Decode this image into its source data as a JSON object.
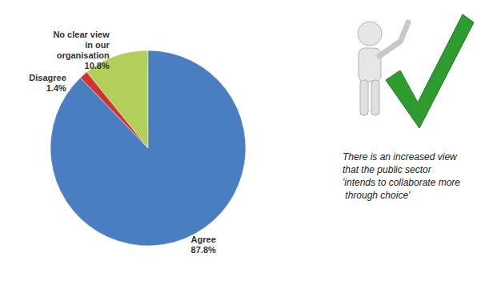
{
  "chart_data": {
    "type": "pie",
    "categories": [
      "No clear view in our organisation",
      "Disagree",
      "Agree"
    ],
    "values": [
      10.8,
      1.4,
      87.8
    ],
    "value_labels": [
      "10.8%",
      "1.4%",
      "87.8%"
    ],
    "colors": [
      "#b3cf5b",
      "#d0342c",
      "#4a7ec0"
    ],
    "data_labels": true,
    "annotations": [
      "There is an increased view that the public sector 'intends to collaborate more through choice'"
    ]
  }
}
